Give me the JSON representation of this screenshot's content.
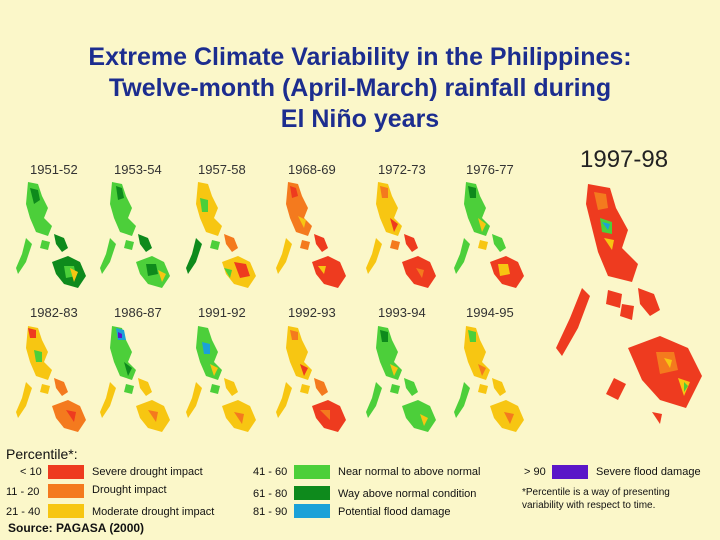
{
  "title": {
    "line1": "Extreme Climate Variability in the Philippines:",
    "line2": "Twelve-month (April-March) rainfall during",
    "line3": "El Niño years"
  },
  "years_row1": [
    "1951-52",
    "1953-54",
    "1957-58",
    "1968-69",
    "1972-73",
    "1976-77"
  ],
  "years_row2": [
    "1982-83",
    "1986-87",
    "1991-92",
    "1992-93",
    "1993-94",
    "1994-95"
  ],
  "year_large": "1997-98",
  "legend": {
    "title": "Percentile*:",
    "items": [
      {
        "range": "< 10",
        "color": "#ee3b1f",
        "label": "Severe drought impact"
      },
      {
        "range": "11 - 20",
        "color": "#f47a1e",
        "label": "Drought impact"
      },
      {
        "range": "21 - 40",
        "color": "#f7c612",
        "label": "Moderate drought impact"
      },
      {
        "range": "41 - 60",
        "color": "#4ccf3a",
        "label": "Near normal to above normal"
      },
      {
        "range": "61 - 80",
        "color": "#0e8a1c",
        "label": "Way above normal condition"
      },
      {
        "range": "81 - 90",
        "color": "#1ba1d8",
        "label": "Potential flood damage"
      },
      {
        "range": "> 90",
        "color": "#5a16c8",
        "label": "Severe flood damage"
      }
    ]
  },
  "footnote": "*Percentile is a way of presenting variability with respect to time.",
  "source": "Source: PAGASA (2000)",
  "map_icon": "philippines-rainfall-map"
}
